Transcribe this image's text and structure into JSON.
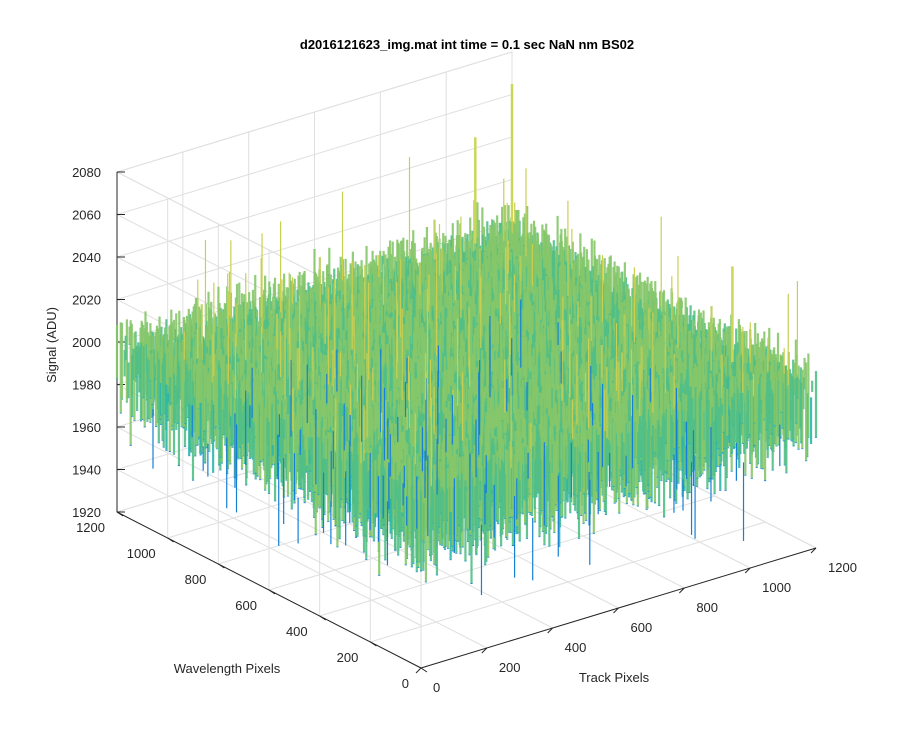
{
  "chart_data": {
    "type": "surface",
    "title": "d2016121623_img.mat int time = 0.1 sec  NaN nm BS02",
    "xlabel": "Track Pixels",
    "ylabel": "Wavelength Pixels",
    "zlabel": "Signal (ADU)",
    "xlim": [
      0,
      1200
    ],
    "ylim": [
      0,
      1200
    ],
    "zlim": [
      1920,
      2080
    ],
    "x_ticks": [
      "0",
      "200",
      "400",
      "600",
      "800",
      "1000",
      "1200"
    ],
    "y_ticks": [
      "0",
      "200",
      "400",
      "600",
      "800",
      "1000",
      "1200"
    ],
    "z_ticks": [
      "1920",
      "1940",
      "1960",
      "1980",
      "2000",
      "2020",
      "2040",
      "2060",
      "2080"
    ],
    "grid": true,
    "colormap": "parula",
    "signal_baseline": 1990,
    "signal_range_approx": [
      1930,
      2060
    ],
    "notable_peaks": [
      {
        "x": 1200,
        "y": 1200,
        "z": 2065
      },
      {
        "x": 1100,
        "y": 200,
        "z": 2045
      },
      {
        "x": 1050,
        "y": 1150,
        "z": 2050
      }
    ]
  },
  "colors": {
    "background": "#ffffff",
    "axis": "#262626",
    "grid": "#dfdfdf",
    "surface_low": "#0f6fd0",
    "surface_mid": "#1fb5a8",
    "surface_high": "#e6c84a"
  }
}
